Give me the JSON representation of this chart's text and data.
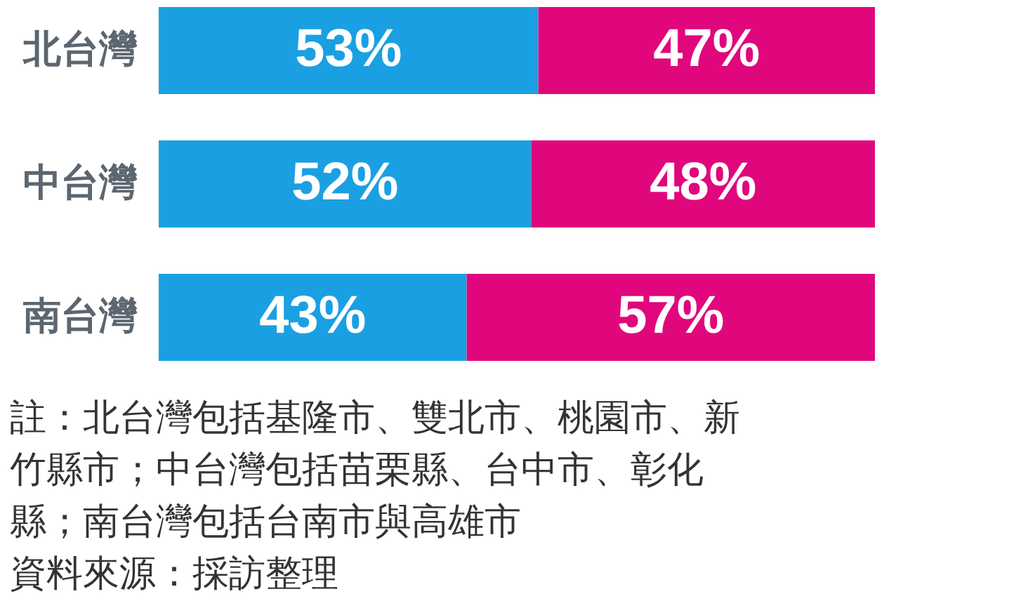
{
  "chart_data": {
    "type": "bar",
    "orientation": "horizontal",
    "stacked": true,
    "categories": [
      "北台灣",
      "中台灣",
      "南台灣"
    ],
    "series": [
      {
        "color": "#1aa0e2",
        "values": [
          53,
          52,
          43
        ],
        "value_labels": [
          "53%",
          "52%",
          "43%"
        ]
      },
      {
        "color": "#e0077d",
        "values": [
          47,
          48,
          57
        ],
        "value_labels": [
          "47%",
          "48%",
          "57%"
        ]
      }
    ],
    "xlim": [
      0,
      100
    ],
    "tick_labels": "y",
    "annotations": [
      "註：北台灣包括基隆市、雙北市、桃園市、新竹縣市；中台灣包括苗栗縣、台中市、彰化縣；南台灣包括台南市與高雄市",
      "資料來源：採訪整理"
    ]
  }
}
